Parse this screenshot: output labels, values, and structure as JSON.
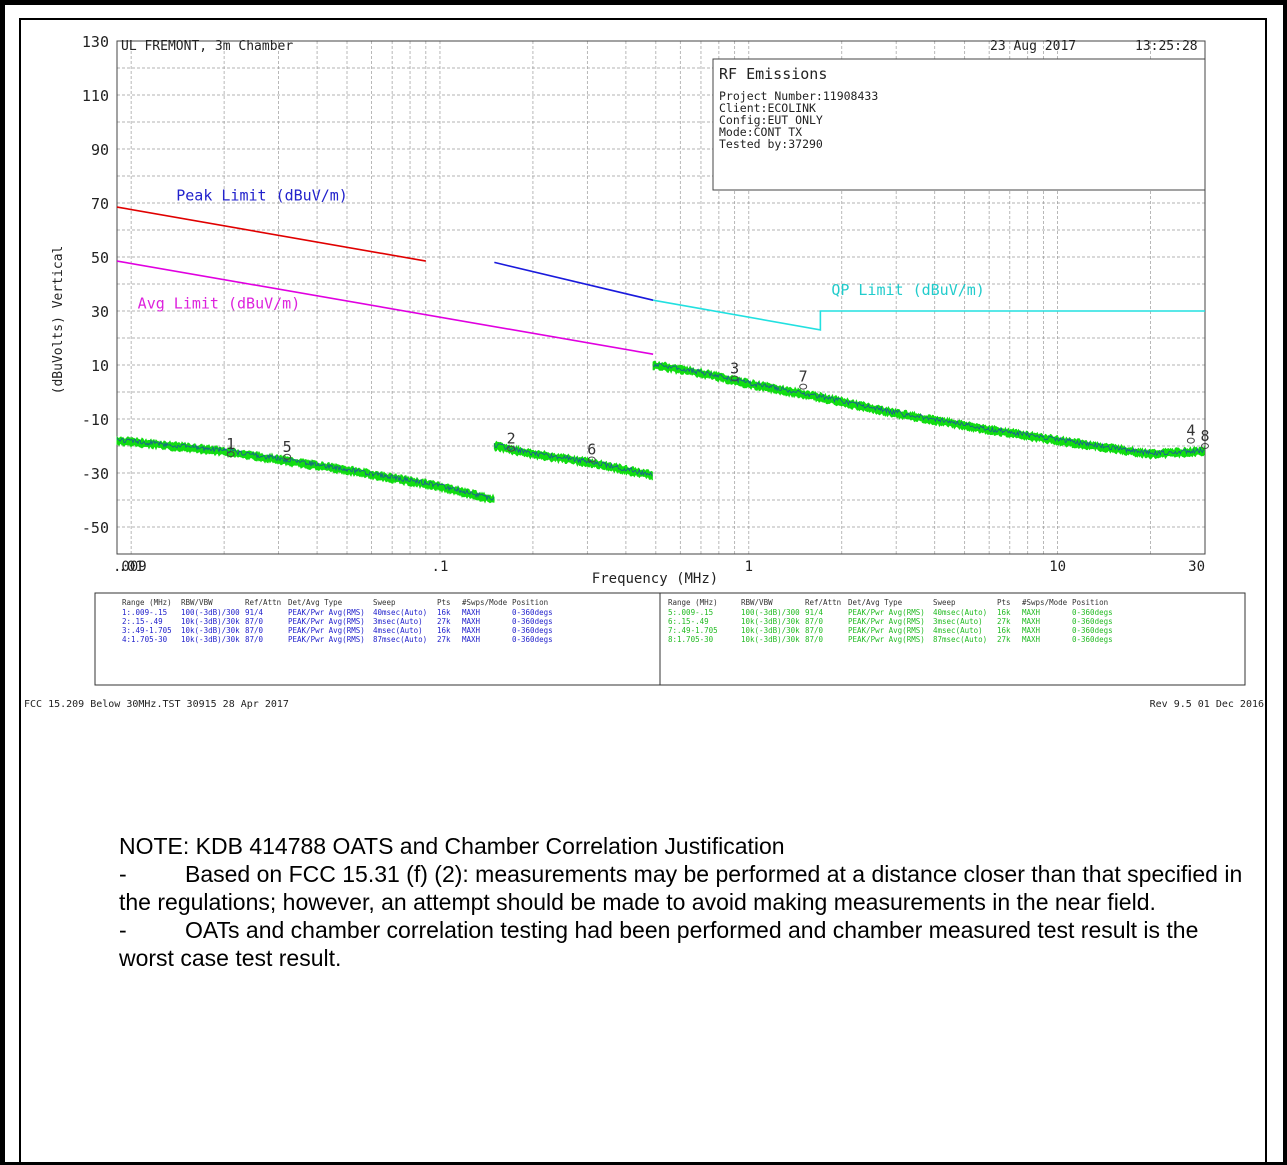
{
  "header": {
    "lab": "UL FREMONT, 3m Chamber",
    "date": "23 Aug 2017",
    "time": "13:25:28"
  },
  "info_box": {
    "title": "RF Emissions",
    "lines": [
      "Project Number:11908433",
      "Client:ECOLINK",
      "Config:EUT ONLY",
      "Mode:CONT TX",
      "Tested by:37290"
    ]
  },
  "table": {
    "left": {
      "headers": [
        "Range (MHz)",
        "RBW/VBW",
        "Ref/Attn",
        "Det/Avg Type",
        "Sweep",
        "Pts",
        "#Swps/Mode",
        "Position"
      ],
      "rows": [
        [
          "1:.009-.15",
          "100(-3dB)/300",
          "91/4",
          "PEAK/Pwr Avg(RMS)",
          "40msec(Auto)",
          "16k",
          "MAXH",
          "0-360degs"
        ],
        [
          "2:.15-.49",
          "10k(-3dB)/30k",
          "87/0",
          "PEAK/Pwr Avg(RMS)",
          "3msec(Auto)",
          "27k",
          "MAXH",
          "0-360degs"
        ],
        [
          "3:.49-1.705",
          "10k(-3dB)/30k",
          "87/0",
          "PEAK/Pwr Avg(RMS)",
          "4msec(Auto)",
          "16k",
          "MAXH",
          "0-360degs"
        ],
        [
          "4:1.705-30",
          "10k(-3dB)/30k",
          "87/0",
          "PEAK/Pwr Avg(RMS)",
          "87msec(Auto)",
          "27k",
          "MAXH",
          "0-360degs"
        ]
      ]
    },
    "right": {
      "headers": [
        "Range (MHz)",
        "RBW/VBW",
        "Ref/Attn",
        "Det/Avg Type",
        "Sweep",
        "Pts",
        "#Swps/Mode",
        "Position"
      ],
      "rows": [
        [
          "5:.009-.15",
          "100(-3dB)/300",
          "91/4",
          "PEAK/Pwr Avg(RMS)",
          "40msec(Auto)",
          "16k",
          "MAXH",
          "0-360degs"
        ],
        [
          "6:.15-.49",
          "10k(-3dB)/30k",
          "87/0",
          "PEAK/Pwr Avg(RMS)",
          "3msec(Auto)",
          "27k",
          "MAXH",
          "0-360degs"
        ],
        [
          "7:.49-1.705",
          "10k(-3dB)/30k",
          "87/0",
          "PEAK/Pwr Avg(RMS)",
          "4msec(Auto)",
          "16k",
          "MAXH",
          "0-360degs"
        ],
        [
          "8:1.705-30",
          "10k(-3dB)/30k",
          "87/0",
          "PEAK/Pwr Avg(RMS)",
          "87msec(Auto)",
          "27k",
          "MAXH",
          "0-360degs"
        ]
      ]
    }
  },
  "footer": {
    "left": "FCC 15.209 Below 30MHz.TST 30915 28 Apr 2017",
    "right": "Rev 9.5 01 Dec 2016"
  },
  "note": {
    "heading": "NOTE: KDB 414788 OATS and Chamber Correlation Justification",
    "bullets": [
      "Based on FCC 15.31 (f) (2): measurements may be performed at a distance closer than that specified in the regulations; however, an attempt should be made to avoid making measurements in the near field.",
      "OATs and chamber correlation testing had been performed and chamber measured test result is the worst case test result."
    ],
    "dash": "-"
  },
  "colors": {
    "peak_limit_low": "#e00000",
    "peak_limit_high": "#1a1adc",
    "avg_limit": "#e000e0",
    "qp_limit": "#22e0e0",
    "trace_green": "#11dd11",
    "trace_blue": "#2020d0",
    "label_blue": "#2222cc",
    "label_magenta": "#dd22dd",
    "label_cyan": "#22cccc",
    "grid": "#9a9a9a"
  },
  "chart_data": {
    "type": "line",
    "xlabel": "Frequency (MHz)",
    "ylabel": "(dBuVolts) Vertical",
    "x_scale": "log",
    "xlim": [
      0.009,
      30
    ],
    "ylim": [
      -60,
      130
    ],
    "ytick_labels": [
      "130",
      "110",
      "90",
      "70",
      "50",
      "30",
      "10",
      "-10",
      "-30",
      "-50"
    ],
    "yticks": [
      130,
      110,
      90,
      70,
      50,
      30,
      10,
      -10,
      -30,
      -50
    ],
    "xtick_labels": [
      ".009",
      ".01",
      ".1",
      "1",
      "10",
      "30"
    ],
    "xticks": [
      0.009,
      0.01,
      0.1,
      1,
      10,
      30
    ],
    "grid": true,
    "limits": [
      {
        "name": "Peak Limit (dBuV/m)",
        "segments": [
          {
            "x": [
              0.009,
              0.09
            ],
            "y": [
              68.5,
              48.5
            ],
            "color": "peak_limit_low"
          },
          {
            "x": [
              0.15,
              0.49
            ],
            "y": [
              48,
              34
            ],
            "color": "peak_limit_high"
          }
        ]
      },
      {
        "name": "Avg Limit (dBuV/m)",
        "segments": [
          {
            "x": [
              0.009,
              0.49
            ],
            "y": [
              48.5,
              14
            ],
            "color": "avg_limit"
          }
        ]
      },
      {
        "name": "QP Limit (dBuV/m)",
        "segments": [
          {
            "x": [
              0.49,
              1.705,
              1.705,
              30
            ],
            "y": [
              34,
              23,
              30,
              30
            ],
            "color": "qp_limit"
          }
        ]
      }
    ],
    "limit_labels": [
      {
        "text": "Peak Limit (dBuV/m)",
        "x": 0.014,
        "y": 71,
        "color": "label_blue"
      },
      {
        "text": "Avg Limit (dBuV/m)",
        "x": 0.0105,
        "y": 31,
        "color": "label_magenta"
      },
      {
        "text": "QP Limit (dBuV/m)",
        "x": 1.85,
        "y": 36,
        "color": "label_cyan"
      }
    ],
    "series": [
      {
        "name": "",
        "color": "trace_green",
        "segments": [
          {
            "x": [
              0.009,
              0.02,
              0.05,
              0.1,
              0.15
            ],
            "y": [
              -18,
              -22,
              -29,
              -35,
              -40
            ]
          },
          {
            "x": [
              0.15,
              0.2,
              0.3,
              0.49
            ],
            "y": [
              -20,
              -23,
              -26,
              -31
            ]
          },
          {
            "x": [
              0.49,
              0.7,
              1.0,
              1.705
            ],
            "y": [
              10,
              7,
              3,
              -2
            ]
          },
          {
            "x": [
              1.705,
              3,
              6,
              10,
              20,
              30
            ],
            "y": [
              -2,
              -8,
              -14,
              -18,
              -23,
              -22
            ]
          }
        ]
      }
    ],
    "markers": [
      {
        "label": "1",
        "x": 0.021,
        "y": -23
      },
      {
        "label": "5",
        "x": 0.032,
        "y": -24
      },
      {
        "label": "2",
        "x": 0.17,
        "y": -21
      },
      {
        "label": "6",
        "x": 0.31,
        "y": -25
      },
      {
        "label": "3",
        "x": 0.9,
        "y": 5
      },
      {
        "label": "7",
        "x": 1.5,
        "y": 2
      },
      {
        "label": "4",
        "x": 27,
        "y": -18
      },
      {
        "label": "8",
        "x": 30,
        "y": -20
      }
    ]
  }
}
